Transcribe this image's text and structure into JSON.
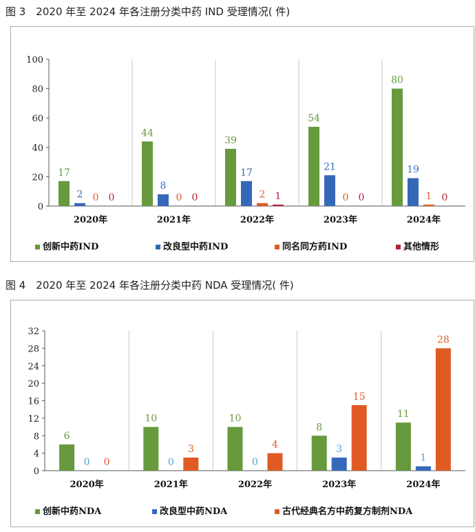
{
  "figures": [
    {
      "title": "图 3　2020 年至 2024 年各注册分类中药 IND 受理情况( 件)",
      "chart_data": {
        "type": "bar",
        "categories": [
          "2020年",
          "2021年",
          "2022年",
          "2023年",
          "2024年"
        ],
        "series": [
          {
            "name": "创新中药IND",
            "color": "#669a3d",
            "values": [
              17,
              44,
              39,
              54,
              80
            ]
          },
          {
            "name": "改良型中药IND",
            "color": "#3568b8",
            "values": [
              2,
              8,
              17,
              21,
              19
            ]
          },
          {
            "name": "同名同方药IND",
            "color": "#e05a24",
            "values": [
              0,
              0,
              2,
              0,
              1
            ]
          },
          {
            "name": "其他情形",
            "color": "#b8223f",
            "values": [
              0,
              0,
              1,
              0,
              0
            ]
          }
        ],
        "label_colors": [
          "#669a3d",
          "#3568b8",
          "#e05a24",
          "#b8223f"
        ],
        "ylim": [
          0,
          100
        ],
        "yticks": [
          0,
          20,
          40,
          60,
          80,
          100
        ],
        "grid": false,
        "legend": "bottom"
      }
    },
    {
      "title": "图 4　2020 年至 2024 年各注册分类中药 NDA 受理情况( 件)",
      "chart_data": {
        "type": "bar",
        "categories": [
          "2020年",
          "2021年",
          "2022年",
          "2023年",
          "2024年"
        ],
        "series": [
          {
            "name": "创新中药NDA",
            "color": "#669a3d",
            "values": [
              6,
              10,
              10,
              8,
              11
            ]
          },
          {
            "name": "改良型中药NDA",
            "color": "#3568b8",
            "values": [
              0,
              0,
              0,
              3,
              1
            ]
          },
          {
            "name": "古代经典名方中药复方制剂NDA",
            "color": "#e05a24",
            "values": [
              0,
              3,
              4,
              15,
              28
            ]
          }
        ],
        "label_colors": [
          "#669a3d",
          "#4aa0d8",
          "#e05a24"
        ],
        "ylim": [
          0,
          32
        ],
        "yticks": [
          0,
          4,
          8,
          12,
          16,
          20,
          24,
          28,
          32
        ],
        "grid": false,
        "legend": "bottom"
      }
    }
  ]
}
